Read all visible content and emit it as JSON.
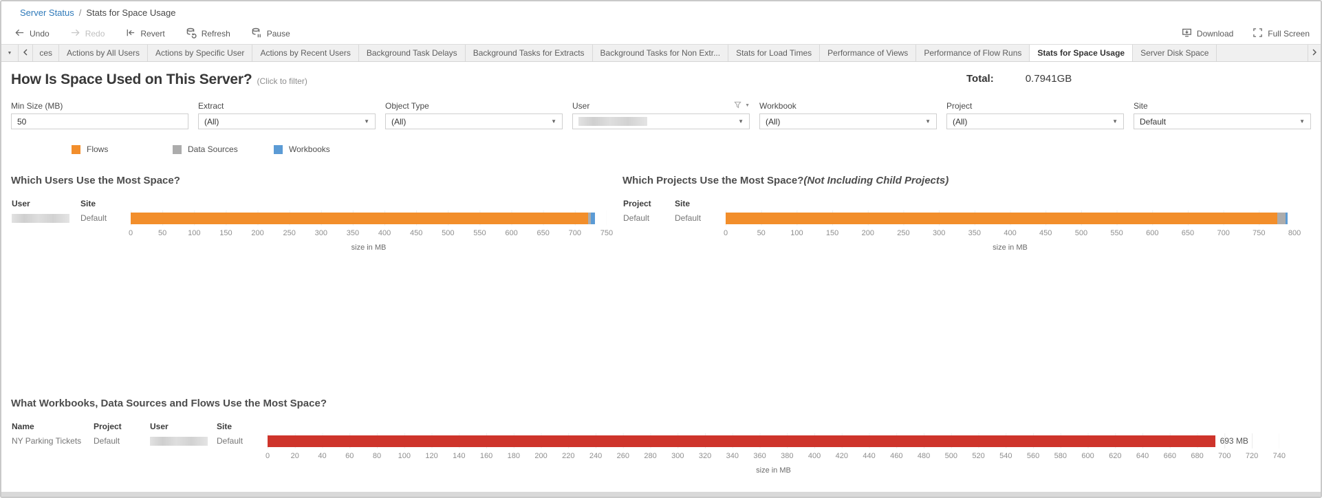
{
  "colors": {
    "link_blue": "#2E79B9",
    "flows_orange": "#F28E2B",
    "data_sources_gray": "#ACACAC",
    "workbooks_blue": "#5B9BD5",
    "bar_red": "#CE342B"
  },
  "breadcrumb": {
    "parent": "Server Status",
    "separator": "/",
    "current": "Stats for Space Usage"
  },
  "toolbar": {
    "undo": "Undo",
    "redo": "Redo",
    "revert": "Revert",
    "refresh": "Refresh",
    "pause": "Pause",
    "download": "Download",
    "fullscreen": "Full Screen"
  },
  "tabs": {
    "items": [
      "ces",
      "Actions by All Users",
      "Actions by Specific User",
      "Actions by Recent Users",
      "Background Task Delays",
      "Background Tasks for Extracts",
      "Background Tasks for Non Extr...",
      "Stats for Load Times",
      "Performance of Views",
      "Performance of Flow Runs",
      "Stats for Space Usage",
      "Server Disk Space"
    ],
    "selected": "Stats for Space Usage"
  },
  "header": {
    "title": "How Is Space Used on This Server?",
    "hint": "(Click to filter)",
    "total_label": "Total:",
    "total_value": "0.7941GB"
  },
  "filters": [
    {
      "label": "Min Size (MB)",
      "type": "input",
      "value": "50"
    },
    {
      "label": "Extract",
      "type": "select",
      "value": "(All)"
    },
    {
      "label": "Object Type",
      "type": "select",
      "value": "(All)"
    },
    {
      "label": "User",
      "type": "select",
      "value": "",
      "redacted": true
    },
    {
      "label": "Workbook",
      "type": "select",
      "value": "(All)"
    },
    {
      "label": "Project",
      "type": "select",
      "value": "(All)"
    },
    {
      "label": "Site",
      "type": "select",
      "value": "Default"
    }
  ],
  "legend": {
    "items": [
      {
        "label": "Flows",
        "color": "#F28E2B"
      },
      {
        "label": "Data Sources",
        "color": "#ACACAC"
      },
      {
        "label": "Workbooks",
        "color": "#5B9BD5"
      }
    ]
  },
  "chart_data": [
    {
      "type": "bar",
      "stacked": true,
      "orientation": "horizontal",
      "title": "Which Users Use the Most Space?",
      "columns": [
        "User",
        "Site"
      ],
      "rows": [
        {
          "user_redacted": true,
          "site": "Default"
        }
      ],
      "series": [
        {
          "name": "Flows",
          "color": "#F28E2B",
          "values": [
            721
          ]
        },
        {
          "name": "Data Sources",
          "color": "#ACACAC",
          "values": [
            4
          ]
        },
        {
          "name": "Workbooks",
          "color": "#5B9BD5",
          "values": [
            7
          ]
        }
      ],
      "xlabel": "size in MB",
      "xlim": [
        0,
        750
      ],
      "ticks": [
        "0",
        "50",
        "100",
        "150",
        "200",
        "250",
        "300",
        "350",
        "400",
        "450",
        "500",
        "550",
        "600",
        "650",
        "700",
        "750"
      ]
    },
    {
      "type": "bar",
      "stacked": true,
      "orientation": "horizontal",
      "title": "Which Projects Use the Most Space?",
      "subtitle": "(Not Including Child Projects)",
      "columns": [
        "Project",
        "Site"
      ],
      "rows": [
        {
          "project": "Default",
          "site": "Default"
        }
      ],
      "series": [
        {
          "name": "Flows",
          "color": "#F28E2B",
          "values": [
            776
          ]
        },
        {
          "name": "Data Sources",
          "color": "#ACACAC",
          "values": [
            11
          ]
        },
        {
          "name": "Workbooks",
          "color": "#5B9BD5",
          "values": [
            3
          ]
        }
      ],
      "xlabel": "size in MB",
      "xlim": [
        0,
        800
      ],
      "ticks": [
        "0",
        "50",
        "100",
        "150",
        "200",
        "250",
        "300",
        "350",
        "400",
        "450",
        "500",
        "550",
        "600",
        "650",
        "700",
        "750",
        "800"
      ]
    },
    {
      "type": "bar",
      "orientation": "horizontal",
      "title": "What Workbooks, Data Sources and Flows Use the Most Space?",
      "columns": [
        "Name",
        "Project",
        "User",
        "Site"
      ],
      "rows": [
        {
          "name": "NY Parking Tickets",
          "project": "Default",
          "user_redacted": true,
          "site": "Default"
        }
      ],
      "series": [
        {
          "name": "Size",
          "color": "#CE342B",
          "values": [
            693
          ]
        }
      ],
      "bar_label": "693 MB",
      "xlabel": "size in MB",
      "xlim": [
        0,
        740
      ],
      "ticks": [
        "0",
        "20",
        "40",
        "60",
        "80",
        "100",
        "120",
        "140",
        "160",
        "180",
        "200",
        "220",
        "240",
        "260",
        "280",
        "300",
        "320",
        "340",
        "360",
        "380",
        "400",
        "420",
        "440",
        "460",
        "480",
        "500",
        "520",
        "540",
        "560",
        "580",
        "600",
        "620",
        "640",
        "660",
        "680",
        "700",
        "720",
        "740"
      ]
    }
  ]
}
